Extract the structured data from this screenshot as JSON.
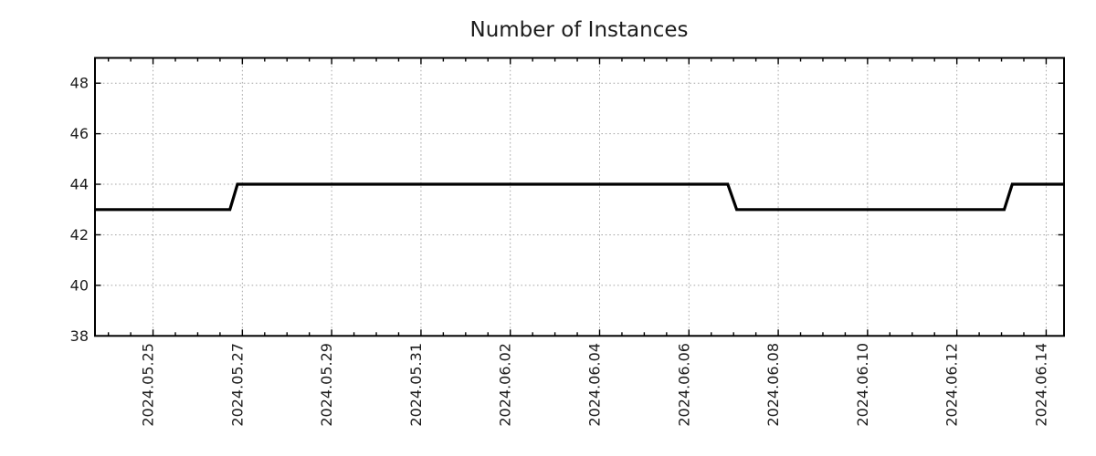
{
  "chart_data": {
    "type": "line",
    "subtype": "step",
    "title": "Number of Instances",
    "xlabel": "",
    "ylabel": "",
    "legend": "none",
    "grid": {
      "show": true,
      "style": "dotted"
    },
    "ylim": [
      38,
      49
    ],
    "y_ticks": [
      38,
      40,
      42,
      44,
      46,
      48
    ],
    "x_axis": {
      "unit": "days since 2024-05-25 00:00",
      "lim": [
        -1.3,
        20.4
      ],
      "minor_tick_step": 0.5,
      "minor_tick_start": -1.0,
      "minor_tick_end": 20.0,
      "major_ticks": [
        {
          "t": 0,
          "label": "2024.05.25"
        },
        {
          "t": 2,
          "label": "2024.05.27"
        },
        {
          "t": 4,
          "label": "2024.05.29"
        },
        {
          "t": 6,
          "label": "2024.05.31"
        },
        {
          "t": 8,
          "label": "2024.06.02"
        },
        {
          "t": 10,
          "label": "2024.06.04"
        },
        {
          "t": 12,
          "label": "2024.06.06"
        },
        {
          "t": 14,
          "label": "2024.06.08"
        },
        {
          "t": 16,
          "label": "2024.06.10"
        },
        {
          "t": 18,
          "label": "2024.06.12"
        },
        {
          "t": 20,
          "label": "2024.06.14"
        }
      ]
    },
    "series": [
      {
        "name": "Number of Instances",
        "points": [
          [
            -1.3,
            43
          ],
          [
            1.72,
            43
          ],
          [
            1.89,
            44
          ],
          [
            12.87,
            44
          ],
          [
            13.07,
            43
          ],
          [
            19.06,
            43
          ],
          [
            19.24,
            44
          ],
          [
            20.4,
            44
          ]
        ]
      }
    ],
    "values_by_period": [
      {
        "from": "chart start (~2024-05-23)",
        "to": "~2024-05-26 19:00",
        "value": 43
      },
      {
        "from": "~2024-05-26 19:00",
        "to": "~2024-06-06 23:00",
        "value": 44
      },
      {
        "from": "~2024-06-06 23:00",
        "to": "~2024-06-13 03:00",
        "value": 43
      },
      {
        "from": "~2024-06-13 03:00",
        "to": "chart end (~2024-06-14)",
        "value": 44
      }
    ],
    "style": {
      "background": "#ffffff",
      "axis_color": "#000000",
      "grid_color": "#a6a6a6",
      "text_color": "#1c1c1c",
      "line_color": "#000000",
      "line_width": 3.2
    }
  }
}
